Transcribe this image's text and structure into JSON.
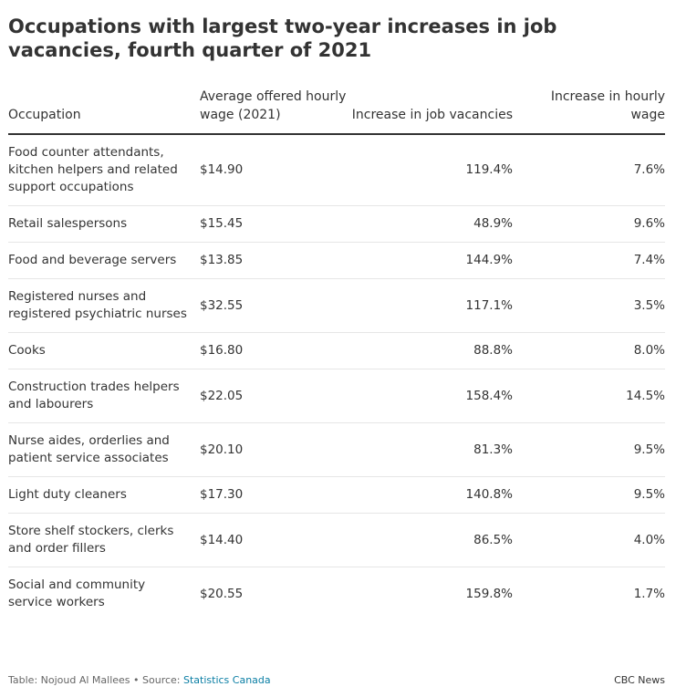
{
  "title": "Occupations with largest two-year increases in job vacancies, fourth quarter of 2021",
  "chart_data": {
    "type": "table",
    "columns": [
      "Occupation",
      "Average offered hourly wage (2021)",
      "Increase in job vacancies",
      "Increase in hourly wage"
    ],
    "rows": [
      [
        "Food counter attendants, kitchen helpers and related support occupations",
        "$14.90",
        "119.4%",
        "7.6%"
      ],
      [
        "Retail salespersons",
        "$15.45",
        "48.9%",
        "9.6%"
      ],
      [
        "Food and beverage servers",
        "$13.85",
        "144.9%",
        "7.4%"
      ],
      [
        "Registered nurses and registered psychiatric nurses",
        "$32.55",
        "117.1%",
        "3.5%"
      ],
      [
        "Cooks",
        "$16.80",
        "88.8%",
        "8.0%"
      ],
      [
        "Construction trades helpers and labourers",
        "$22.05",
        "158.4%",
        "14.5%"
      ],
      [
        "Nurse aides, orderlies and patient service associates",
        "$20.10",
        "81.3%",
        "9.5%"
      ],
      [
        "Light duty cleaners",
        "$17.30",
        "140.8%",
        "9.5%"
      ],
      [
        "Store shelf stockers, clerks and order fillers",
        "$14.40",
        "86.5%",
        "4.0%"
      ],
      [
        "Social and community service workers",
        "$20.55",
        "159.8%",
        "1.7%"
      ]
    ]
  },
  "footer": {
    "credit": "Table: Nojoud Al Mallees • Source: ",
    "source_link": "Statistics Canada",
    "brand": "CBC News"
  },
  "colors": {
    "text": "#333333",
    "rule": "#333333",
    "row_divider": "#e6e6e6",
    "link": "#0a7ea4"
  }
}
